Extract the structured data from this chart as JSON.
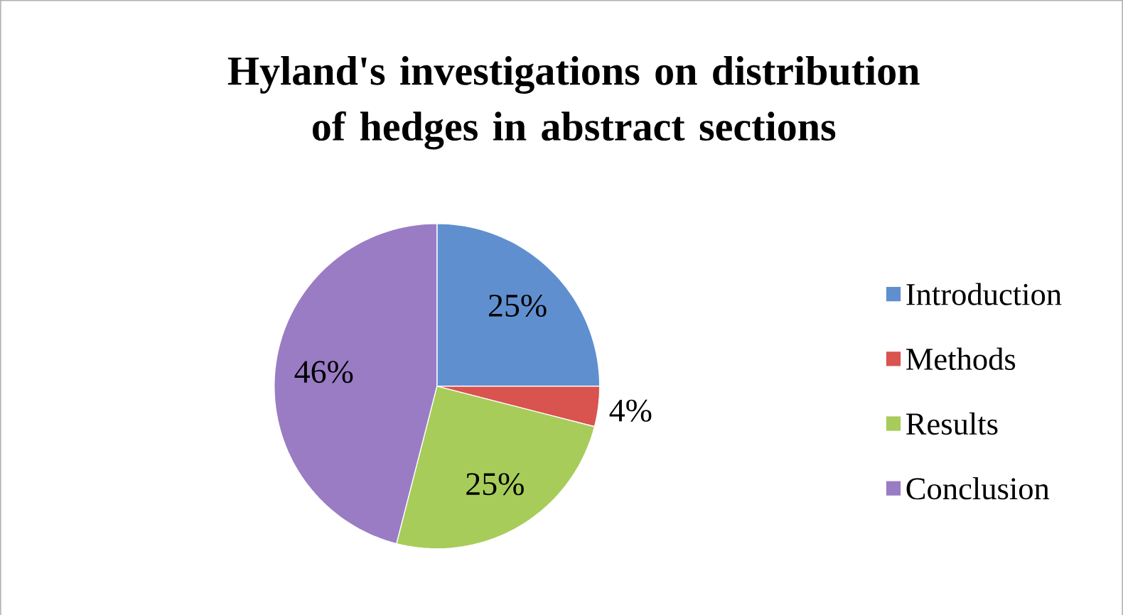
{
  "chart_data": {
    "type": "pie",
    "title": "Hyland's investigations on distribution of hedges in abstract sections",
    "categories": [
      "Introduction",
      "Methods",
      "Results",
      "Conclusion"
    ],
    "values": [
      25,
      4,
      25,
      46
    ],
    "colors": [
      "#5f8fcf",
      "#d9534f",
      "#a7cc5a",
      "#9a7cc4"
    ],
    "value_labels": [
      "25%",
      "4%",
      "25%",
      "46%"
    ],
    "legend": "right"
  }
}
